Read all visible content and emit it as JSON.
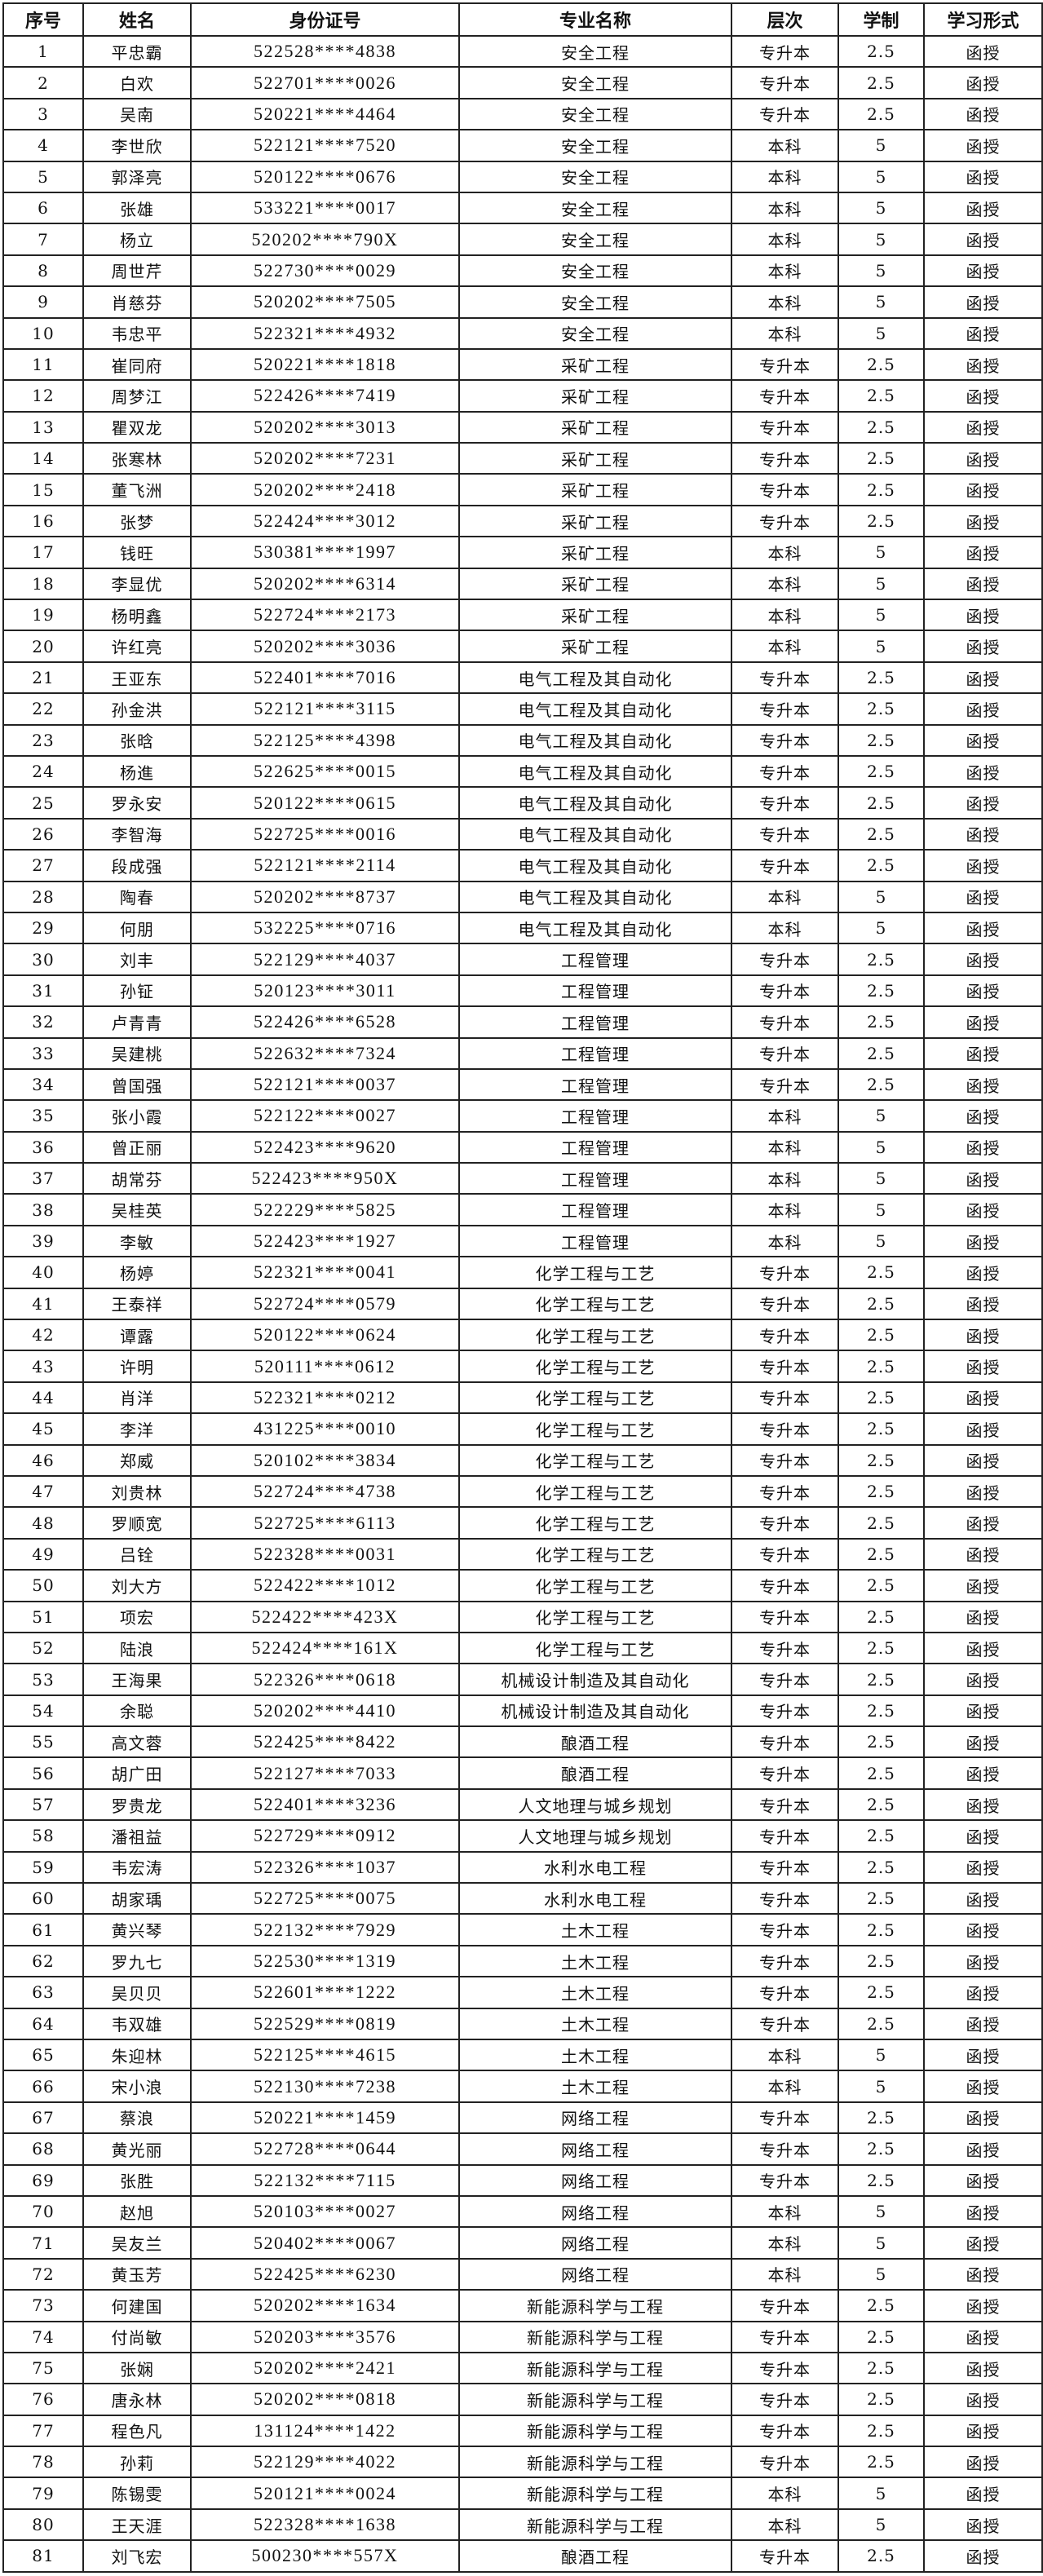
{
  "headers": [
    "序号",
    "姓名",
    "身份证号",
    "专业名称",
    "层次",
    "学制",
    "学习形式"
  ],
  "rows": [
    [
      "1",
      "平忠霸",
      "522528****4838",
      "安全工程",
      "专升本",
      "2.5",
      "函授"
    ],
    [
      "2",
      "白欢",
      "522701****0026",
      "安全工程",
      "专升本",
      "2.5",
      "函授"
    ],
    [
      "3",
      "吴南",
      "520221****4464",
      "安全工程",
      "专升本",
      "2.5",
      "函授"
    ],
    [
      "4",
      "李世欣",
      "522121****7520",
      "安全工程",
      "本科",
      "5",
      "函授"
    ],
    [
      "5",
      "郭泽亮",
      "520122****0676",
      "安全工程",
      "本科",
      "5",
      "函授"
    ],
    [
      "6",
      "张雄",
      "533221****0017",
      "安全工程",
      "本科",
      "5",
      "函授"
    ],
    [
      "7",
      "杨立",
      "520202****790X",
      "安全工程",
      "本科",
      "5",
      "函授"
    ],
    [
      "8",
      "周世芹",
      "522730****0029",
      "安全工程",
      "本科",
      "5",
      "函授"
    ],
    [
      "9",
      "肖慈芬",
      "520202****7505",
      "安全工程",
      "本科",
      "5",
      "函授"
    ],
    [
      "10",
      "韦忠平",
      "522321****4932",
      "安全工程",
      "本科",
      "5",
      "函授"
    ],
    [
      "11",
      "崔同府",
      "520221****1818",
      "采矿工程",
      "专升本",
      "2.5",
      "函授"
    ],
    [
      "12",
      "周梦江",
      "522426****7419",
      "采矿工程",
      "专升本",
      "2.5",
      "函授"
    ],
    [
      "13",
      "瞿双龙",
      "520202****3013",
      "采矿工程",
      "专升本",
      "2.5",
      "函授"
    ],
    [
      "14",
      "张寒林",
      "520202****7231",
      "采矿工程",
      "专升本",
      "2.5",
      "函授"
    ],
    [
      "15",
      "董飞洲",
      "520202****2418",
      "采矿工程",
      "专升本",
      "2.5",
      "函授"
    ],
    [
      "16",
      "张梦",
      "522424****3012",
      "采矿工程",
      "专升本",
      "2.5",
      "函授"
    ],
    [
      "17",
      "钱旺",
      "530381****1997",
      "采矿工程",
      "本科",
      "5",
      "函授"
    ],
    [
      "18",
      "李显优",
      "520202****6314",
      "采矿工程",
      "本科",
      "5",
      "函授"
    ],
    [
      "19",
      "杨明鑫",
      "522724****2173",
      "采矿工程",
      "本科",
      "5",
      "函授"
    ],
    [
      "20",
      "许红亮",
      "520202****3036",
      "采矿工程",
      "本科",
      "5",
      "函授"
    ],
    [
      "21",
      "王亚东",
      "522401****7016",
      "电气工程及其自动化",
      "专升本",
      "2.5",
      "函授"
    ],
    [
      "22",
      "孙金洪",
      "522121****3115",
      "电气工程及其自动化",
      "专升本",
      "2.5",
      "函授"
    ],
    [
      "23",
      "张晗",
      "522125****4398",
      "电气工程及其自动化",
      "专升本",
      "2.5",
      "函授"
    ],
    [
      "24",
      "杨進",
      "522625****0015",
      "电气工程及其自动化",
      "专升本",
      "2.5",
      "函授"
    ],
    [
      "25",
      "罗永安",
      "520122****0615",
      "电气工程及其自动化",
      "专升本",
      "2.5",
      "函授"
    ],
    [
      "26",
      "李智海",
      "522725****0016",
      "电气工程及其自动化",
      "专升本",
      "2.5",
      "函授"
    ],
    [
      "27",
      "段成强",
      "522121****2114",
      "电气工程及其自动化",
      "专升本",
      "2.5",
      "函授"
    ],
    [
      "28",
      "陶春",
      "520202****8737",
      "电气工程及其自动化",
      "本科",
      "5",
      "函授"
    ],
    [
      "29",
      "何朋",
      "532225****0716",
      "电气工程及其自动化",
      "本科",
      "5",
      "函授"
    ],
    [
      "30",
      "刘丰",
      "522129****4037",
      "工程管理",
      "专升本",
      "2.5",
      "函授"
    ],
    [
      "31",
      "孙钲",
      "520123****3011",
      "工程管理",
      "专升本",
      "2.5",
      "函授"
    ],
    [
      "32",
      "卢青青",
      "522426****6528",
      "工程管理",
      "专升本",
      "2.5",
      "函授"
    ],
    [
      "33",
      "吴建桃",
      "522632****7324",
      "工程管理",
      "专升本",
      "2.5",
      "函授"
    ],
    [
      "34",
      "曾国强",
      "522121****0037",
      "工程管理",
      "专升本",
      "2.5",
      "函授"
    ],
    [
      "35",
      "张小霞",
      "522122****0027",
      "工程管理",
      "本科",
      "5",
      "函授"
    ],
    [
      "36",
      "曾正丽",
      "522423****9620",
      "工程管理",
      "本科",
      "5",
      "函授"
    ],
    [
      "37",
      "胡常芬",
      "522423****950X",
      "工程管理",
      "本科",
      "5",
      "函授"
    ],
    [
      "38",
      "吴桂英",
      "522229****5825",
      "工程管理",
      "本科",
      "5",
      "函授"
    ],
    [
      "39",
      "李敏",
      "522423****1927",
      "工程管理",
      "本科",
      "5",
      "函授"
    ],
    [
      "40",
      "杨婷",
      "522321****0041",
      "化学工程与工艺",
      "专升本",
      "2.5",
      "函授"
    ],
    [
      "41",
      "王泰祥",
      "522724****0579",
      "化学工程与工艺",
      "专升本",
      "2.5",
      "函授"
    ],
    [
      "42",
      "谭露",
      "520122****0624",
      "化学工程与工艺",
      "专升本",
      "2.5",
      "函授"
    ],
    [
      "43",
      "许明",
      "520111****0612",
      "化学工程与工艺",
      "专升本",
      "2.5",
      "函授"
    ],
    [
      "44",
      "肖洋",
      "522321****0212",
      "化学工程与工艺",
      "专升本",
      "2.5",
      "函授"
    ],
    [
      "45",
      "李洋",
      "431225****0010",
      "化学工程与工艺",
      "专升本",
      "2.5",
      "函授"
    ],
    [
      "46",
      "郑威",
      "520102****3834",
      "化学工程与工艺",
      "专升本",
      "2.5",
      "函授"
    ],
    [
      "47",
      "刘贵林",
      "522724****4738",
      "化学工程与工艺",
      "专升本",
      "2.5",
      "函授"
    ],
    [
      "48",
      "罗顺宽",
      "522725****6113",
      "化学工程与工艺",
      "专升本",
      "2.5",
      "函授"
    ],
    [
      "49",
      "吕铨",
      "522328****0031",
      "化学工程与工艺",
      "专升本",
      "2.5",
      "函授"
    ],
    [
      "50",
      "刘大方",
      "522422****1012",
      "化学工程与工艺",
      "专升本",
      "2.5",
      "函授"
    ],
    [
      "51",
      "项宏",
      "522422****423X",
      "化学工程与工艺",
      "专升本",
      "2.5",
      "函授"
    ],
    [
      "52",
      "陆浪",
      "522424****161X",
      "化学工程与工艺",
      "专升本",
      "2.5",
      "函授"
    ],
    [
      "53",
      "王海果",
      "522326****0618",
      "机械设计制造及其自动化",
      "专升本",
      "2.5",
      "函授"
    ],
    [
      "54",
      "余聪",
      "520202****4410",
      "机械设计制造及其自动化",
      "专升本",
      "2.5",
      "函授"
    ],
    [
      "55",
      "高文蓉",
      "522425****8422",
      "酿酒工程",
      "专升本",
      "2.5",
      "函授"
    ],
    [
      "56",
      "胡广田",
      "522127****7033",
      "酿酒工程",
      "专升本",
      "2.5",
      "函授"
    ],
    [
      "57",
      "罗贵龙",
      "522401****3236",
      "人文地理与城乡规划",
      "专升本",
      "2.5",
      "函授"
    ],
    [
      "58",
      "潘祖益",
      "522729****0912",
      "人文地理与城乡规划",
      "专升本",
      "2.5",
      "函授"
    ],
    [
      "59",
      "韦宏涛",
      "522326****1037",
      "水利水电工程",
      "专升本",
      "2.5",
      "函授"
    ],
    [
      "60",
      "胡家瑀",
      "522725****0075",
      "水利水电工程",
      "专升本",
      "2.5",
      "函授"
    ],
    [
      "61",
      "黄兴琴",
      "522132****7929",
      "土木工程",
      "专升本",
      "2.5",
      "函授"
    ],
    [
      "62",
      "罗九七",
      "522530****1319",
      "土木工程",
      "专升本",
      "2.5",
      "函授"
    ],
    [
      "63",
      "吴贝贝",
      "522601****1222",
      "土木工程",
      "专升本",
      "2.5",
      "函授"
    ],
    [
      "64",
      "韦双雄",
      "522529****0819",
      "土木工程",
      "专升本",
      "2.5",
      "函授"
    ],
    [
      "65",
      "朱迎林",
      "522125****4615",
      "土木工程",
      "本科",
      "5",
      "函授"
    ],
    [
      "66",
      "宋小浪",
      "522130****7238",
      "土木工程",
      "本科",
      "5",
      "函授"
    ],
    [
      "67",
      "蔡浪",
      "520221****1459",
      "网络工程",
      "专升本",
      "2.5",
      "函授"
    ],
    [
      "68",
      "黄光丽",
      "522728****0644",
      "网络工程",
      "专升本",
      "2.5",
      "函授"
    ],
    [
      "69",
      "张胜",
      "522132****7115",
      "网络工程",
      "专升本",
      "2.5",
      "函授"
    ],
    [
      "70",
      "赵旭",
      "520103****0027",
      "网络工程",
      "本科",
      "5",
      "函授"
    ],
    [
      "71",
      "吴友兰",
      "520402****0067",
      "网络工程",
      "本科",
      "5",
      "函授"
    ],
    [
      "72",
      "黄玉芳",
      "522425****6230",
      "网络工程",
      "本科",
      "5",
      "函授"
    ],
    [
      "73",
      "何建国",
      "520202****1634",
      "新能源科学与工程",
      "专升本",
      "2.5",
      "函授"
    ],
    [
      "74",
      "付尚敏",
      "520203****3576",
      "新能源科学与工程",
      "专升本",
      "2.5",
      "函授"
    ],
    [
      "75",
      "张娴",
      "520202****2421",
      "新能源科学与工程",
      "专升本",
      "2.5",
      "函授"
    ],
    [
      "76",
      "唐永林",
      "520202****0818",
      "新能源科学与工程",
      "专升本",
      "2.5",
      "函授"
    ],
    [
      "77",
      "程色凡",
      "131124****1422",
      "新能源科学与工程",
      "专升本",
      "2.5",
      "函授"
    ],
    [
      "78",
      "孙莉",
      "522129****4022",
      "新能源科学与工程",
      "专升本",
      "2.5",
      "函授"
    ],
    [
      "79",
      "陈锡雯",
      "520121****0024",
      "新能源科学与工程",
      "本科",
      "5",
      "函授"
    ],
    [
      "80",
      "王天涯",
      "522328****1638",
      "新能源科学与工程",
      "本科",
      "5",
      "函授"
    ],
    [
      "81",
      "刘飞宏",
      "500230****557X",
      "酿酒工程",
      "专升本",
      "2.5",
      "函授"
    ]
  ]
}
